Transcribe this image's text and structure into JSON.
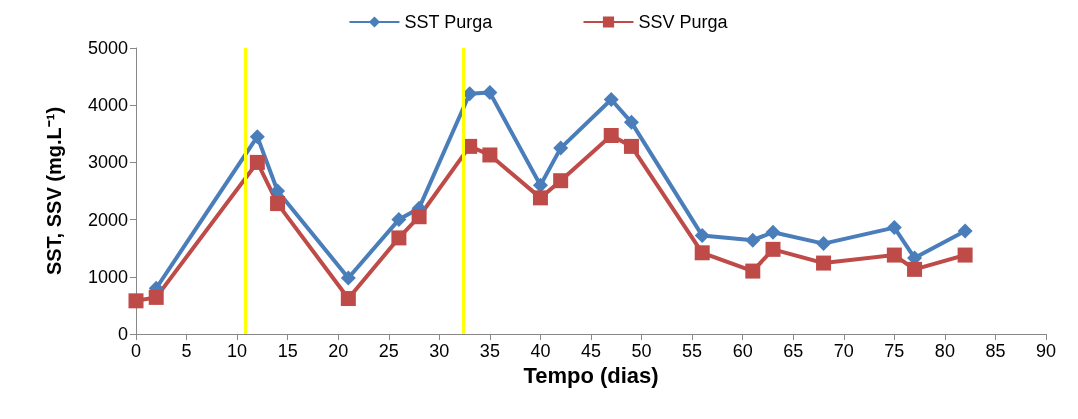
{
  "chart_data": {
    "type": "line",
    "xlabel": "Tempo (dias)",
    "ylabel": "SST, SSV (mg.L⁻¹)",
    "x": [
      0,
      2,
      12,
      14,
      21,
      26,
      28,
      33,
      35,
      40,
      42,
      47,
      49,
      56,
      61,
      63,
      68,
      75,
      77,
      82
    ],
    "series": [
      {
        "name": "SST Purga",
        "color": "#4a7ebb",
        "marker": "diamond",
        "values": [
          null,
          800,
          3450,
          2500,
          980,
          2000,
          2200,
          4200,
          4220,
          2600,
          3250,
          4100,
          3700,
          1720,
          1640,
          1780,
          1580,
          1860,
          1330,
          1800
        ]
      },
      {
        "name": "SSV Purga",
        "color": "#be4b48",
        "marker": "square",
        "values": [
          580,
          640,
          3000,
          2280,
          620,
          1680,
          2050,
          3280,
          3130,
          2380,
          2680,
          3470,
          3280,
          1420,
          1100,
          1480,
          1240,
          1380,
          1130,
          1380
        ]
      }
    ],
    "xlim": [
      0,
      90
    ],
    "xticks": [
      0,
      5,
      10,
      15,
      20,
      25,
      30,
      35,
      40,
      45,
      50,
      55,
      60,
      65,
      70,
      75,
      80,
      85,
      90
    ],
    "ylim": [
      0,
      5000
    ],
    "yticks": [
      0,
      1000,
      2000,
      3000,
      4000,
      5000
    ],
    "ref_lines": [
      {
        "axis": "x",
        "value": 10.8,
        "color": "#ffff00"
      },
      {
        "axis": "x",
        "value": 32.4,
        "color": "#ffff00"
      }
    ],
    "grid": false,
    "legend": "top",
    "line_style": "solid"
  }
}
